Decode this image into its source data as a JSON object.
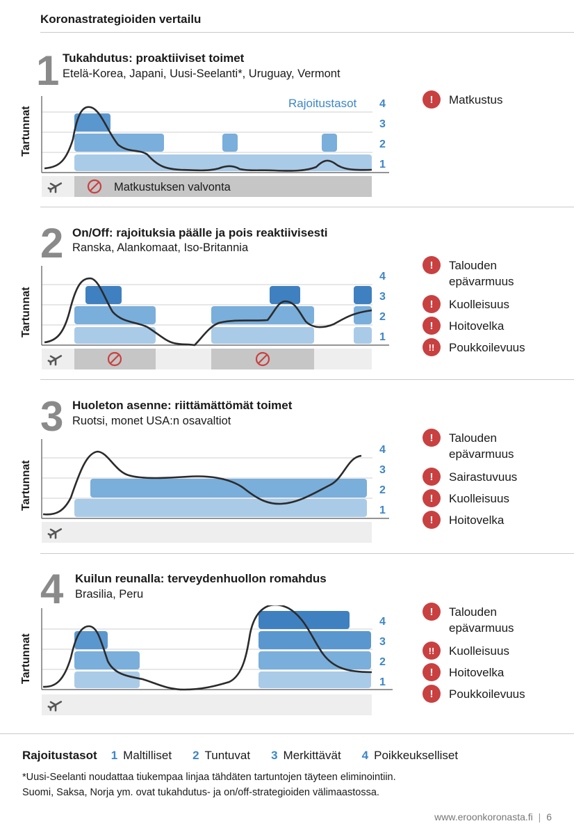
{
  "page_title": "Koronastrategioiden vertailu",
  "y_axis_label": "Tartunnat",
  "levels_label": "Rajoitustasot",
  "level_numbers": [
    "4",
    "3",
    "2",
    "1"
  ],
  "sections": [
    {
      "number": "1",
      "title": "Tukahdutus: proaktiiviset toimet",
      "subtitle": "Etelä-Korea, Japani, Uusi-Seelanti*, Uruguay, Vermont",
      "travel_text": "Matkustuksen valvonta",
      "risks": [
        {
          "icon": "!",
          "label": "Matkustus"
        }
      ]
    },
    {
      "number": "2",
      "title": "On/Off: rajoituksia päälle ja pois reaktiivisesti",
      "subtitle": "Ranska, Alankomaat, Iso-Britannia",
      "risks": [
        {
          "icon": "!",
          "label": "Talouden epävarmuus"
        },
        {
          "icon": "!",
          "label": "Kuolleisuus"
        },
        {
          "icon": "!",
          "label": "Hoitovelka"
        },
        {
          "icon": "!!",
          "label": "Poukkoilevuus"
        }
      ]
    },
    {
      "number": "3",
      "title": "Huoleton asenne: riittämättömät toimet",
      "subtitle": "Ruotsi, monet USA:n osavaltiot",
      "risks": [
        {
          "icon": "!",
          "label": "Talouden epävarmuus"
        },
        {
          "icon": "!",
          "label": "Sairastuvuus"
        },
        {
          "icon": "!",
          "label": "Kuolleisuus"
        },
        {
          "icon": "!",
          "label": "Hoitovelka"
        }
      ]
    },
    {
      "number": "4",
      "title": "Kuilun reunalla: terveydenhuollon romahdus",
      "subtitle": "Brasilia, Peru",
      "risks": [
        {
          "icon": "!",
          "label": "Talouden epävarmuus"
        },
        {
          "icon": "!!",
          "label": "Kuolleisuus"
        },
        {
          "icon": "!",
          "label": "Hoitovelka"
        },
        {
          "icon": "!",
          "label": "Poukkoilevuus"
        }
      ]
    }
  ],
  "legend": {
    "title": "Rajoitustasot",
    "items": [
      {
        "num": "1",
        "label": "Maltilliset"
      },
      {
        "num": "2",
        "label": "Tuntuvat"
      },
      {
        "num": "3",
        "label": "Merkittävät"
      },
      {
        "num": "4",
        "label": "Poikkeukselliset"
      }
    ]
  },
  "footnote_1": "*Uusi-Seelanti noudattaa tiukempaa linjaa tähdäten tartuntojen täyteen eliminointiin.",
  "footnote_2": "Suomi, Saksa, Norja ym. ovat tukahdutus- ja on/off-strategioiden välimaastossa.",
  "footer_url": "www.eroonkoronasta.fi",
  "footer_page": "6",
  "colors": {
    "level1": "#a9cbe8",
    "level2": "#7aaedb",
    "level3": "#5a97cf",
    "level4": "#3f80c0",
    "accent_blue": "#3d86c6",
    "risk_red": "#c94040",
    "travel_bar": "#c6c6c6",
    "travel_track": "#eeeeee"
  }
}
